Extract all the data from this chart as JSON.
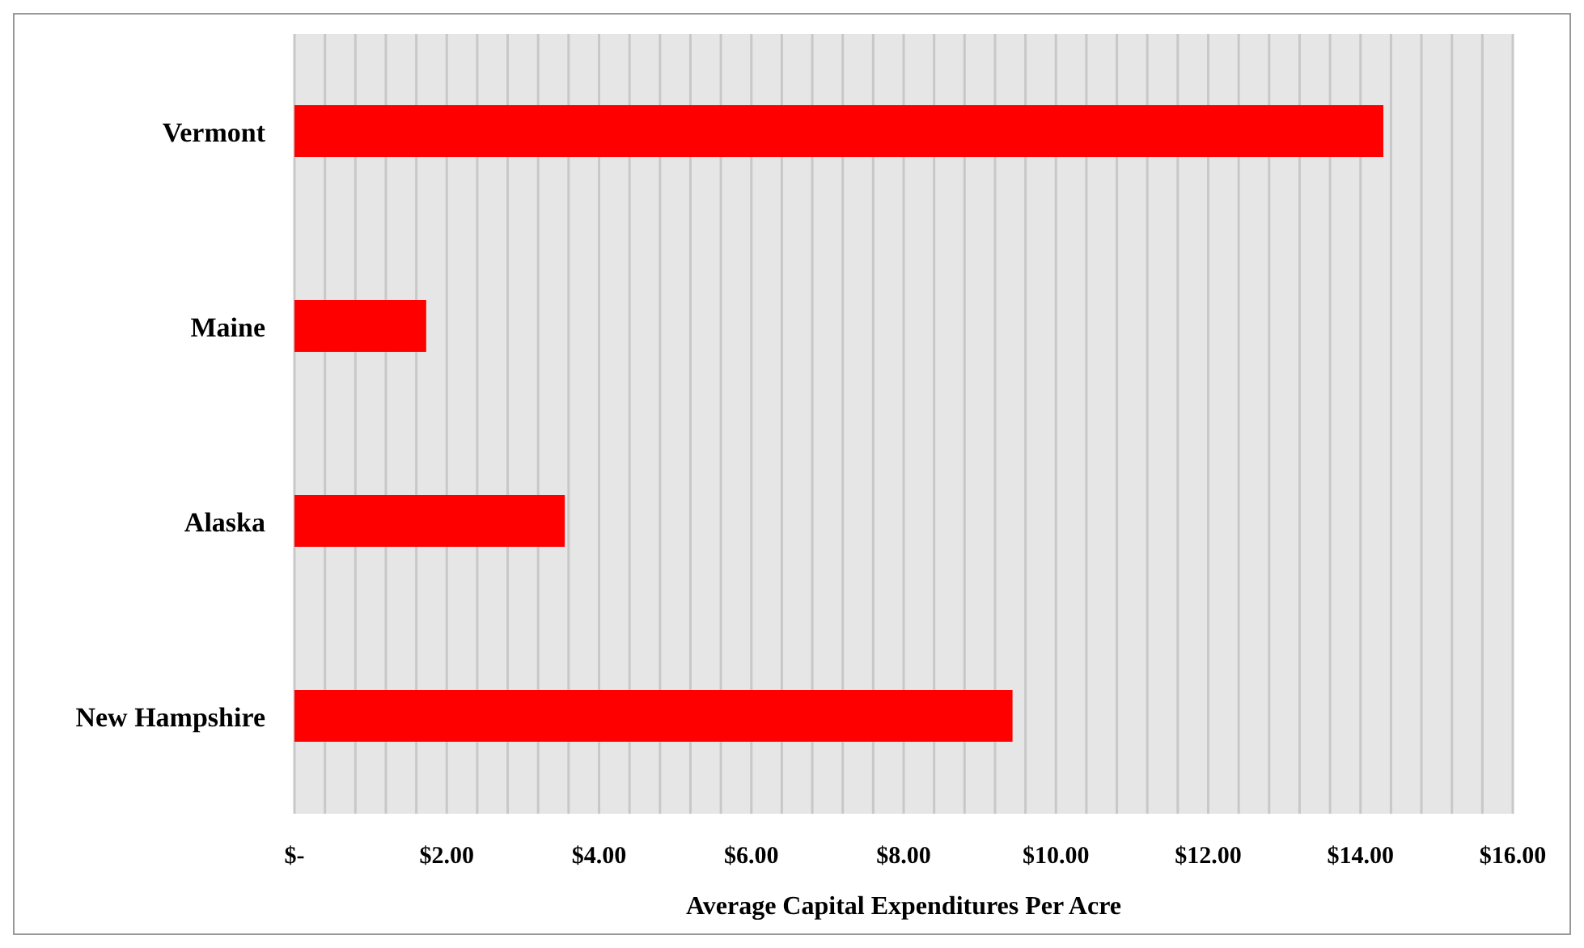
{
  "chart_data": {
    "type": "bar",
    "orientation": "horizontal",
    "xlabel": "Average Capital Expenditures Per Acre",
    "categories": [
      "Vermont",
      "Maine",
      "Alaska",
      "New Hampshire"
    ],
    "values": [
      14.3,
      1.73,
      3.55,
      9.43
    ],
    "color": "#ff0000",
    "xlim": [
      0,
      16
    ],
    "xticks": [
      {
        "value": 0,
        "label": "$-"
      },
      {
        "value": 0.4,
        "label": null
      },
      {
        "value": 0.8,
        "label": null
      },
      {
        "value": 1.2,
        "label": null
      },
      {
        "value": 1.6,
        "label": null
      },
      {
        "value": 2,
        "label": "$2.00"
      },
      {
        "value": 2.4,
        "label": null
      },
      {
        "value": 2.8,
        "label": null
      },
      {
        "value": 3.2,
        "label": null
      },
      {
        "value": 3.6,
        "label": null
      },
      {
        "value": 4,
        "label": "$4.00"
      },
      {
        "value": 4.4,
        "label": null
      },
      {
        "value": 4.8,
        "label": null
      },
      {
        "value": 5.2,
        "label": null
      },
      {
        "value": 5.6,
        "label": null
      },
      {
        "value": 6,
        "label": "$6.00"
      },
      {
        "value": 6.4,
        "label": null
      },
      {
        "value": 6.8,
        "label": null
      },
      {
        "value": 7.2,
        "label": null
      },
      {
        "value": 7.6,
        "label": null
      },
      {
        "value": 8,
        "label": "$8.00"
      },
      {
        "value": 8.4,
        "label": null
      },
      {
        "value": 8.8,
        "label": null
      },
      {
        "value": 9.2,
        "label": null
      },
      {
        "value": 9.6,
        "label": null
      },
      {
        "value": 10,
        "label": "$10.00"
      },
      {
        "value": 10.4,
        "label": null
      },
      {
        "value": 10.8,
        "label": null
      },
      {
        "value": 11.2,
        "label": null
      },
      {
        "value": 11.6,
        "label": null
      },
      {
        "value": 12,
        "label": "$12.00"
      },
      {
        "value": 12.4,
        "label": null
      },
      {
        "value": 12.8,
        "label": null
      },
      {
        "value": 13.2,
        "label": null
      },
      {
        "value": 13.6,
        "label": null
      },
      {
        "value": 14,
        "label": "$14.00"
      },
      {
        "value": 14.4,
        "label": null
      },
      {
        "value": 14.8,
        "label": null
      },
      {
        "value": 15.2,
        "label": null
      },
      {
        "value": 15.6,
        "label": null
      },
      {
        "value": 16,
        "label": "$16.00"
      }
    ],
    "grid": "x",
    "legend": false
  }
}
